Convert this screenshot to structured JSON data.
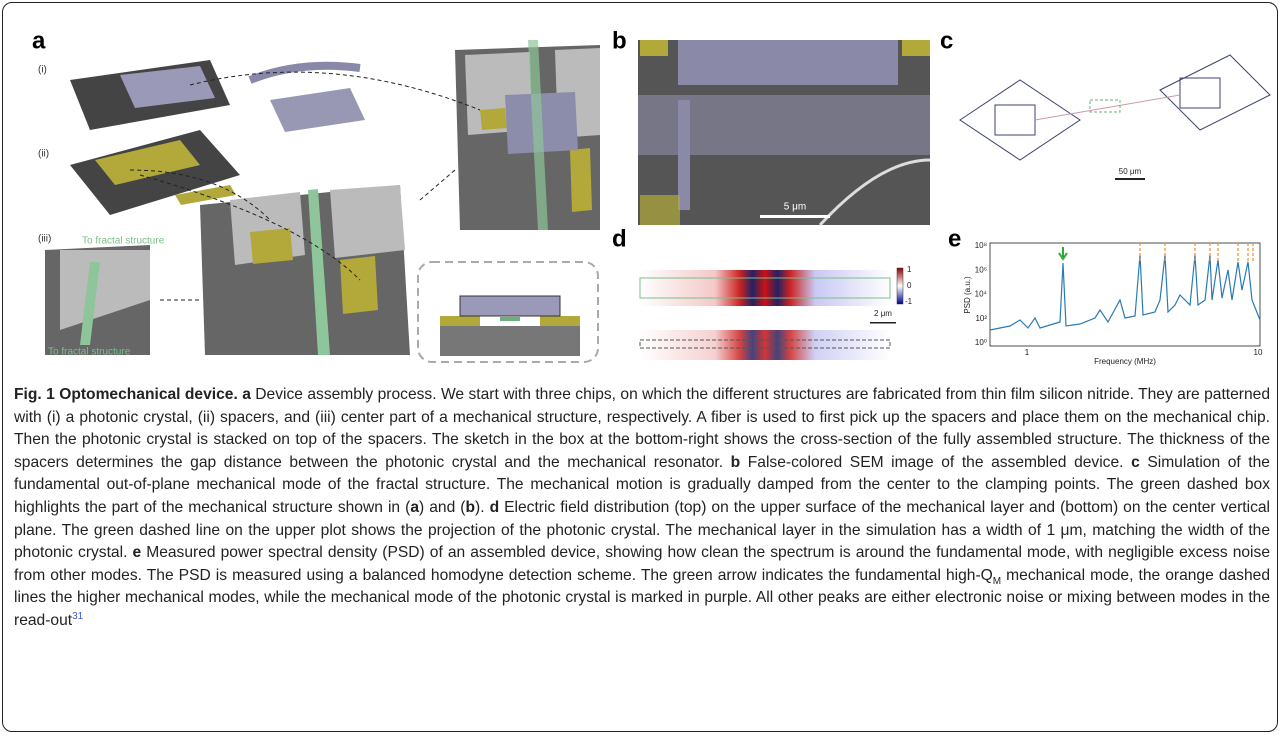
{
  "figure": {
    "panel_a": {
      "letter": "a",
      "step1": "(i)",
      "step2": "(ii)",
      "step3": "(iii)",
      "fractal_top": "To fractal structure",
      "fractal_bottom": "To fractal structure"
    },
    "panel_b": {
      "letter": "b",
      "scale": "5 μm"
    },
    "panel_c": {
      "letter": "c",
      "scale": "50 μm"
    },
    "panel_d": {
      "letter": "d",
      "cbar_top": "1",
      "cbar_mid": "0",
      "cbar_bottom": "-1",
      "scale": "2 μm"
    },
    "panel_e": {
      "letter": "e",
      "ylabel": "PSD (a.u.)",
      "xlabel": "Frequency (MHz)",
      "yticks": [
        "10⁸",
        "10⁶",
        "10⁴",
        "10²",
        "10⁰"
      ],
      "xticks": [
        "1",
        "10"
      ]
    }
  },
  "caption": {
    "runs": [
      {
        "text": "Fig. 1 Optomechanical device.",
        "style": "bold"
      },
      {
        "text": " "
      },
      {
        "text": "a",
        "style": "bold"
      },
      {
        "text": " Device assembly process. We start with three chips, on which the different structures are fabricated from thin film silicon nitride. They are patterned with (i) a photonic crystal, (ii) spacers, and (iii) center part of a mechanical structure, respectively. A fiber is used to first pick up the spacers and place them on the mechanical chip. Then the photonic crystal is stacked on top of the spacers. The sketch in the box at the bottom-right shows the cross-section of the fully assembled structure. The thickness of the spacers determines the gap distance between the photonic crystal and the mechanical resonator. "
      },
      {
        "text": "b",
        "style": "bold"
      },
      {
        "text": " False-colored SEM image of the assembled device. "
      },
      {
        "text": "c",
        "style": "bold"
      },
      {
        "text": " Simulation of the fundamental out-of-plane mechanical mode of the fractal structure. The mechanical motion is gradually damped from the center to the clamping points. The green dashed box highlights the part of the mechanical structure shown in ("
      },
      {
        "text": "a",
        "style": "bold"
      },
      {
        "text": ") and ("
      },
      {
        "text": "b",
        "style": "bold"
      },
      {
        "text": "). "
      },
      {
        "text": "d",
        "style": "bold"
      },
      {
        "text": " Electric field distribution (top) on the upper surface of the mechanical layer and (bottom) on the center vertical plane. The green dashed line on the upper plot shows the projection of the photonic crystal. The mechanical layer in the simulation has a width of 1 μm, matching the width of the photonic crystal. "
      },
      {
        "text": "e",
        "style": "bold"
      },
      {
        "text": " Measured power spectral density (PSD) of an assembled device, showing how clean the spectrum is around the fundamental mode, with negligible excess noise from other modes. The PSD is measured using a balanced homodyne detection scheme. The green arrow indicates the fundamental high-Q"
      },
      {
        "text": "M",
        "style": "sub"
      },
      {
        "text": " mechanical mode, the orange dashed lines the higher mechanical modes, while the mechanical mode of the photonic crystal is marked in purple. All other peaks are either electronic noise or mixing between modes in the read-out"
      },
      {
        "text": "31",
        "style": "sup"
      }
    ]
  }
}
